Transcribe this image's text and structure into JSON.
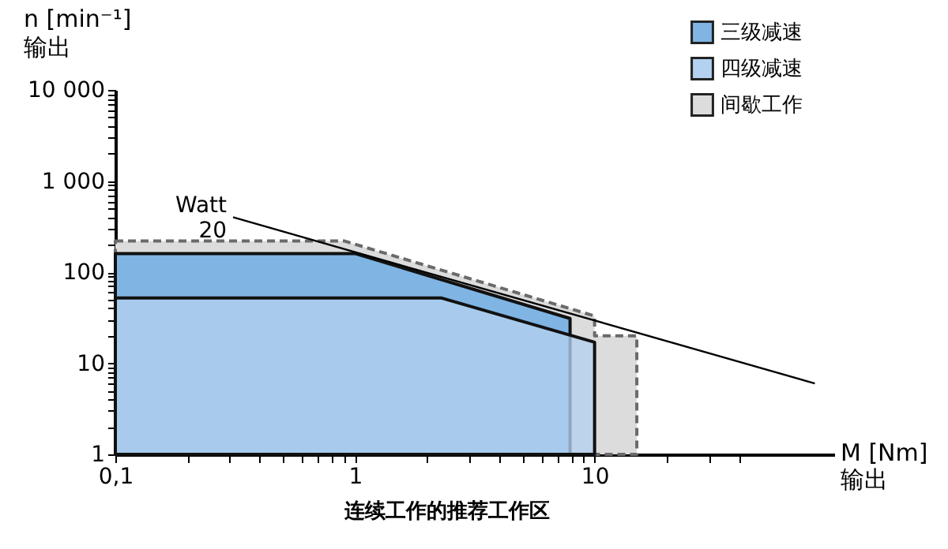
{
  "chart_data": {
    "type": "area",
    "log": "xy",
    "xlabel": "M [Nm]\n输出",
    "ylabel": "n [min⁻¹]\n输出",
    "legend": "top right",
    "annotations": [
      "连续工作的推荐工作区",
      {
        "text": "Watt\n20",
        "x": 0.31,
        "y": 400
      }
    ],
    "xlim": [
      0.1,
      100
    ],
    "ylim": [
      1,
      10000
    ],
    "xticks": [
      {
        "value": 0.1,
        "label": "0,1"
      },
      {
        "value": 0.2,
        "label": null
      },
      {
        "value": 0.3,
        "label": null
      },
      {
        "value": 0.4,
        "label": null
      },
      {
        "value": 0.5,
        "label": null
      },
      {
        "value": 0.6,
        "label": null
      },
      {
        "value": 0.7,
        "label": null
      },
      {
        "value": 0.8,
        "label": null
      },
      {
        "value": 0.9,
        "label": null
      },
      1,
      {
        "value": 2,
        "label": null
      },
      {
        "value": 3,
        "label": null
      },
      {
        "value": 4,
        "label": null
      },
      {
        "value": 5,
        "label": null
      },
      {
        "value": 6,
        "label": null
      },
      {
        "value": 7,
        "label": null
      },
      {
        "value": 8,
        "label": null
      },
      {
        "value": 9,
        "label": null
      },
      10,
      {
        "value": 20,
        "label": null
      },
      {
        "value": 30,
        "label": null
      },
      {
        "value": 40,
        "label": null
      }
    ],
    "yticks": [
      1,
      {
        "value": 2,
        "label": null
      },
      {
        "value": 3,
        "label": null
      },
      {
        "value": 4,
        "label": null
      },
      {
        "value": 5,
        "label": null
      },
      {
        "value": 6,
        "label": null
      },
      {
        "value": 7,
        "label": null
      },
      {
        "value": 8,
        "label": null
      },
      {
        "value": 9,
        "label": null
      },
      10,
      {
        "value": 20,
        "label": null
      },
      {
        "value": 30,
        "label": null
      },
      {
        "value": 40,
        "label": null
      },
      {
        "value": 50,
        "label": null
      },
      {
        "value": 60,
        "label": null
      },
      {
        "value": 70,
        "label": null
      },
      {
        "value": 80,
        "label": null
      },
      {
        "value": 90,
        "label": null
      },
      100,
      {
        "value": 200,
        "label": null
      },
      {
        "value": 300,
        "label": null
      },
      {
        "value": 400,
        "label": null
      },
      {
        "value": 500,
        "label": null
      },
      {
        "value": 600,
        "label": null
      },
      {
        "value": 700,
        "label": null
      },
      {
        "value": 800,
        "label": null
      },
      {
        "value": 900,
        "label": null
      },
      {
        "value": 1000,
        "label": "1 000"
      },
      {
        "value": 2000,
        "label": null
      },
      {
        "value": 3000,
        "label": null
      },
      {
        "value": 4000,
        "label": null
      },
      {
        "value": 5000,
        "label": null
      },
      {
        "value": 6000,
        "label": null
      },
      {
        "value": 7000,
        "label": null
      },
      {
        "value": 8000,
        "label": null
      },
      {
        "value": 9000,
        "label": null
      },
      {
        "value": 10000,
        "label": "10 000"
      }
    ],
    "series": [
      {
        "name": "三级减速",
        "color": "#7fb4e3",
        "x": [
          0.1,
          1,
          7.9
        ],
        "values": [
          160,
          160,
          31
        ]
      },
      {
        "name": "四级减速",
        "color": "#b3d1f0",
        "x": [
          0.1,
          2.3,
          10
        ],
        "values": [
          52,
          52,
          17
        ]
      },
      {
        "name": "间歇工作",
        "color": "#dcdcdc",
        "line_style": "dashed",
        "x": [
          0.1,
          0.9,
          10,
          10,
          15
        ],
        "values": [
          220,
          220,
          33,
          20,
          20
        ]
      },
      {
        "type": "line",
        "color": "#000000",
        "x": [
          0.31,
          83
        ],
        "values": [
          400,
          6
        ]
      }
    ]
  }
}
